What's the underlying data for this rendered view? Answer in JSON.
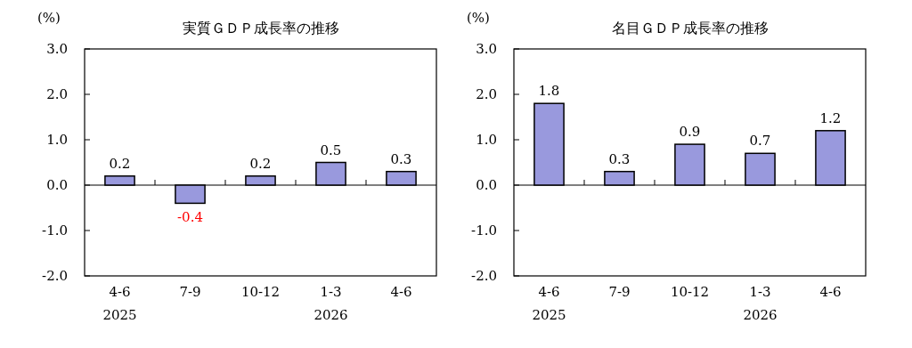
{
  "chart_data": [
    {
      "type": "bar",
      "title": "実質ＧＤＰ成長率の推移",
      "ylabel": "(%)",
      "categories": [
        "4-6\n2025",
        "7-9",
        "10-12",
        "1-3\n2026",
        "4-6"
      ],
      "values": [
        0.2,
        -0.4,
        0.2,
        0.5,
        0.3
      ],
      "color": "#9999dd",
      "ylim": [
        -2,
        3
      ],
      "yticks": [
        {
          "value": 3,
          "label": "3.0"
        },
        {
          "value": 2,
          "label": "2.0"
        },
        {
          "value": 1,
          "label": "1.0"
        },
        {
          "value": 0,
          "label": "0.0"
        },
        {
          "value": -1,
          "label": "-1.0"
        },
        {
          "value": -2,
          "label": "-2.0"
        }
      ],
      "data_labels": true
    },
    {
      "type": "bar",
      "title": "名目ＧＤＰ成長率の推移",
      "ylabel": "(%)",
      "categories": [
        "4-6\n2025",
        "7-9",
        "10-12",
        "1-3\n2026",
        "4-6"
      ],
      "values": [
        1.8,
        0.3,
        0.9,
        0.7,
        1.2
      ],
      "color": "#9999dd",
      "ylim": [
        -2,
        3
      ],
      "yticks": [
        {
          "value": 3,
          "label": "3.0"
        },
        {
          "value": 2,
          "label": "2.0"
        },
        {
          "value": 1,
          "label": "1.0"
        },
        {
          "value": 0,
          "label": "0.0"
        },
        {
          "value": -1,
          "label": "-1.0"
        },
        {
          "value": -2,
          "label": "-2.0"
        }
      ],
      "data_labels": true
    }
  ]
}
